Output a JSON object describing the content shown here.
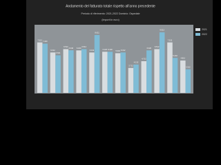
{
  "chart_data": {
    "type": "bar",
    "title": "Andamento del fatturato totale rispetto all'anno precedente",
    "subtitle": "Periodo di riferimento: 2021-2022 Dominio: Ospedale",
    "note": "(Importi in euro)",
    "categories": [
      null,
      null,
      null,
      null,
      null,
      null,
      null,
      null,
      null,
      null,
      null,
      null
    ],
    "legend": "right",
    "series": [
      {
        "name": "2021",
        "color": "#d9dde0",
        "values": [
          7512,
          6012,
          6512,
          6320,
          6012,
          6120,
          5902,
          3712,
          4712,
          6512,
          7512,
          4812
        ],
        "value_labels": [
          "7.512",
          "6.012",
          "6.512",
          "6.320",
          "6.012",
          "6.120",
          "5.902",
          "3.712",
          "4.712",
          "6.512",
          "7.512",
          "4.812"
        ]
      },
      {
        "name": "2022",
        "color": "#7fbcd6",
        "values": [
          7320,
          5584,
          6340,
          6512,
          8611,
          6120,
          6012,
          4212,
          6320,
          9012,
          5202,
          3512
        ],
        "value_labels": [
          "7.320",
          "5.584",
          "6.340",
          "6.512",
          "8.611",
          "6.120",
          "6.012",
          "4.212",
          "6.320",
          "9.012",
          "5.202",
          "3.512"
        ]
      }
    ]
  }
}
